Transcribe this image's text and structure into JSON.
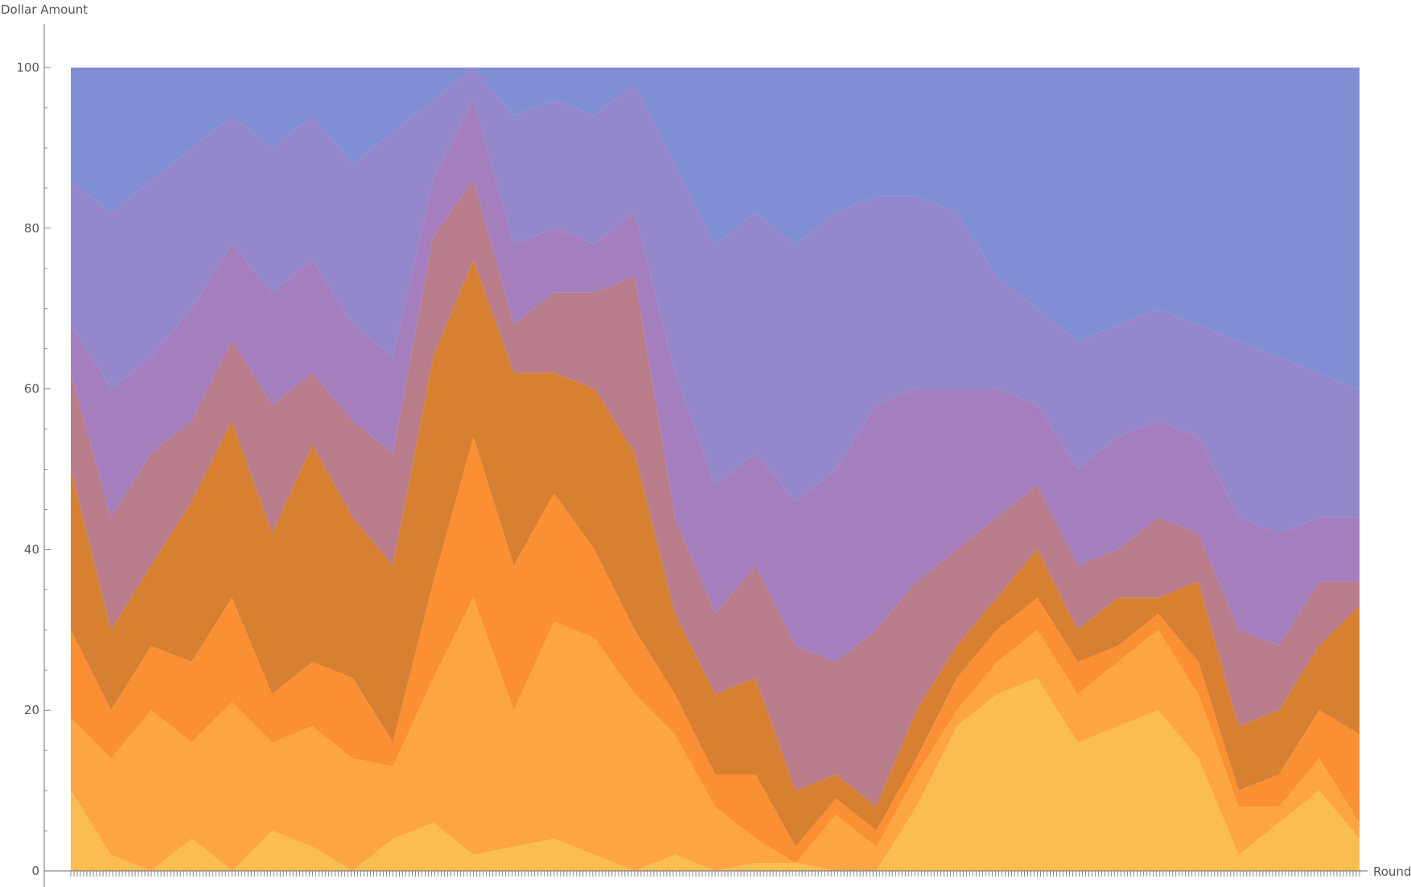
{
  "chart_data": {
    "type": "area",
    "stacked": true,
    "title": "",
    "xlabel": "Round",
    "ylabel": "Dollar  Amount",
    "xlim": [
      0,
      800
    ],
    "ylim": [
      0,
      100
    ],
    "yticks": [
      0,
      20,
      40,
      60,
      80,
      100
    ],
    "grid": false,
    "legend": "none",
    "x": [
      0,
      25,
      50,
      75,
      100,
      125,
      150,
      175,
      200,
      225,
      250,
      275,
      300,
      325,
      350,
      375,
      400,
      425,
      450,
      475,
      500,
      525,
      550,
      575,
      600,
      625,
      650,
      675,
      700,
      725,
      750,
      775,
      800
    ],
    "series_colors": [
      "#fbbd4f",
      "#fca542",
      "#fb8f33",
      "#d88032",
      "#b87c8a",
      "#a57ebd",
      "#9487cb",
      "#808ed4"
    ],
    "boundaries": [
      [
        10,
        2,
        0,
        4,
        0,
        5,
        3,
        0,
        4,
        6,
        2,
        3,
        4,
        2,
        0,
        2,
        0,
        1,
        1,
        0,
        0,
        8,
        18,
        22,
        24,
        16,
        18,
        20,
        14,
        2,
        6,
        10,
        4
      ],
      [
        19,
        14,
        20,
        16,
        21,
        16,
        18,
        14,
        13,
        24,
        34,
        20,
        31,
        29,
        22,
        17,
        8,
        4,
        1,
        7,
        3,
        12,
        20,
        26,
        30,
        22,
        26,
        30,
        22,
        8,
        8,
        14,
        6
      ],
      [
        30,
        20,
        28,
        26,
        34,
        22,
        26,
        24,
        16,
        36,
        54,
        38,
        47,
        40,
        30,
        22,
        12,
        12,
        3,
        9,
        5,
        14,
        24,
        30,
        34,
        26,
        28,
        32,
        26,
        10,
        12,
        20,
        17
      ],
      [
        50,
        30,
        38,
        46,
        56,
        42,
        53,
        44,
        38,
        64,
        76,
        62,
        62,
        60,
        52,
        32,
        22,
        24,
        10,
        12,
        8,
        20,
        28,
        34,
        40,
        30,
        34,
        34,
        36,
        18,
        20,
        28,
        33
      ],
      [
        62,
        44,
        52,
        56,
        66,
        58,
        62,
        56,
        52,
        79,
        86,
        68,
        72,
        72,
        74,
        44,
        32,
        38,
        28,
        26,
        30,
        36,
        40,
        44,
        48,
        38,
        40,
        44,
        42,
        30,
        28,
        36,
        36
      ],
      [
        68,
        60,
        64,
        70,
        78,
        72,
        76,
        68,
        64,
        86,
        96,
        78,
        80,
        78,
        82,
        62,
        48,
        52,
        46,
        50,
        58,
        60,
        60,
        60,
        58,
        50,
        54,
        56,
        54,
        44,
        42,
        44,
        44
      ],
      [
        86,
        82,
        86,
        90,
        94,
        90,
        94,
        88,
        92,
        96,
        100,
        94,
        96,
        94,
        98,
        88,
        78,
        82,
        78,
        82,
        84,
        84,
        82,
        74,
        70,
        66,
        68,
        70,
        68,
        66,
        64,
        62,
        60
      ],
      [
        100,
        100,
        100,
        100,
        100,
        100,
        100,
        100,
        100,
        100,
        100,
        100,
        100,
        100,
        100,
        100,
        100,
        100,
        100,
        100,
        100,
        100,
        100,
        100,
        100,
        100,
        100,
        100,
        100,
        100,
        100,
        100,
        100
      ]
    ]
  }
}
